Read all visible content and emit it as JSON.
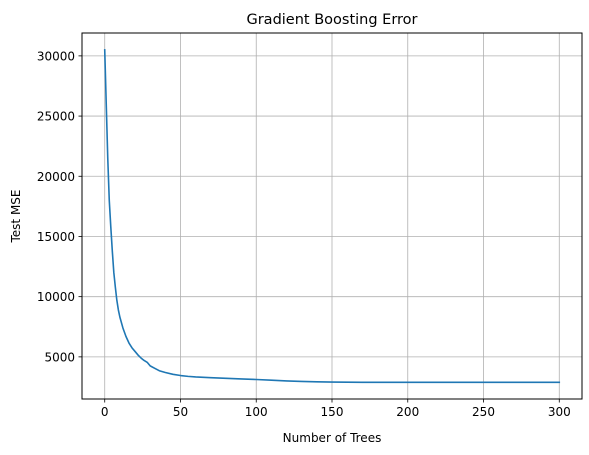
{
  "chart_data": {
    "type": "line",
    "title": "Gradient Boosting Error",
    "xlabel": "Number of Trees",
    "ylabel": "Test MSE",
    "xlim": [
      -15,
      315
    ],
    "ylim": [
      1500,
      31900
    ],
    "xticks": [
      0,
      50,
      100,
      150,
      200,
      250,
      300
    ],
    "xtick_labels": [
      "0",
      "50",
      "100",
      "150",
      "200",
      "250",
      "300"
    ],
    "yticks": [
      5000,
      10000,
      15000,
      20000,
      25000,
      30000
    ],
    "ytick_labels": [
      "5000",
      "10000",
      "15000",
      "20000",
      "25000",
      "30000"
    ],
    "grid": true,
    "line_color": "#1f77b4",
    "grid_color": "#b0b0b0",
    "series": [
      {
        "x": [
          0,
          1,
          2,
          3,
          4,
          5,
          6,
          7,
          8,
          9,
          10,
          12,
          14,
          16,
          18,
          20,
          22,
          24,
          26,
          28,
          30,
          33,
          36,
          40,
          45,
          50,
          55,
          60,
          65,
          70,
          80,
          90,
          100,
          110,
          120,
          130,
          140,
          150,
          160,
          170,
          180,
          190,
          200,
          210,
          220,
          230,
          240,
          250,
          260,
          270,
          280,
          290,
          300
        ],
        "y": [
          30500,
          26000,
          21500,
          18000,
          15800,
          13800,
          12000,
          10800,
          9700,
          8900,
          8300,
          7400,
          6700,
          6150,
          5750,
          5450,
          5150,
          4900,
          4700,
          4550,
          4250,
          4050,
          3850,
          3700,
          3550,
          3450,
          3380,
          3330,
          3300,
          3270,
          3220,
          3170,
          3120,
          3060,
          3000,
          2960,
          2930,
          2910,
          2900,
          2890,
          2890,
          2890,
          2890,
          2890,
          2890,
          2890,
          2890,
          2890,
          2890,
          2890,
          2890,
          2890,
          2890
        ]
      }
    ]
  }
}
